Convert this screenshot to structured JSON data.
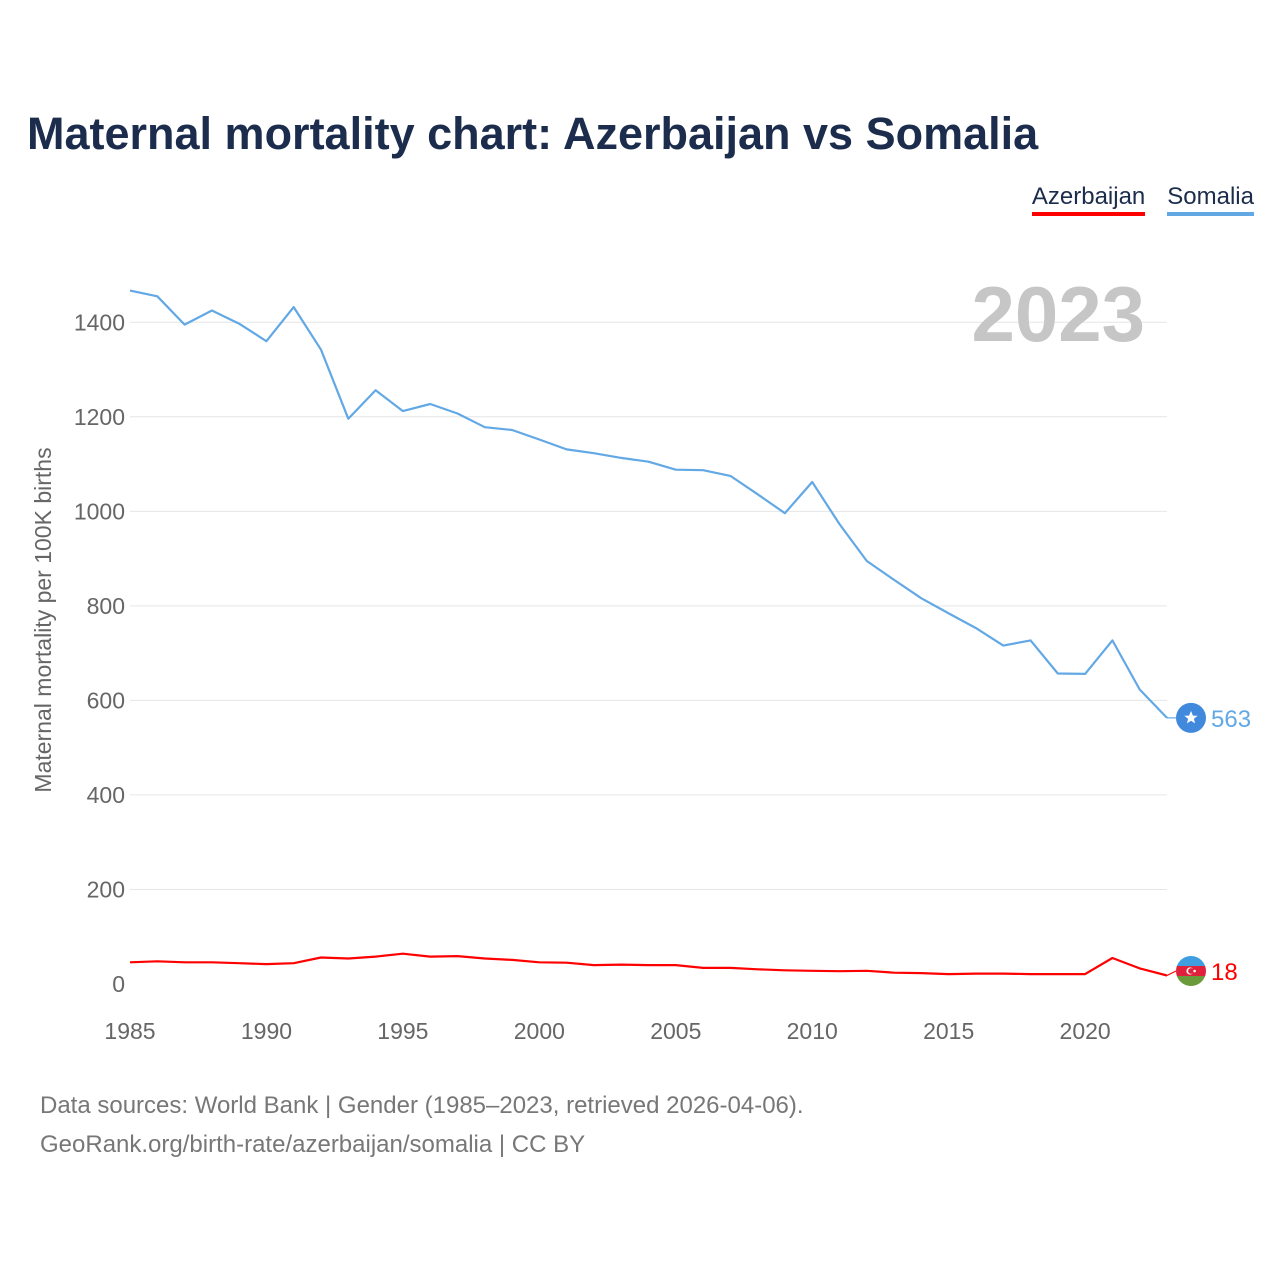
{
  "chart_data": {
    "type": "line",
    "title": "Maternal mortality chart: Azerbaijan vs Somalia",
    "ylabel": "Maternal mortality per 100K births",
    "xlabel": "",
    "current_year": "2023",
    "xlim": [
      1985,
      2023
    ],
    "ylim": [
      0,
      1500
    ],
    "x_ticks": [
      1985,
      1990,
      1995,
      2000,
      2005,
      2010,
      2015,
      2020
    ],
    "y_ticks": [
      0,
      200,
      400,
      600,
      800,
      1000,
      1200,
      1400
    ],
    "grid": true,
    "legend_position": "top-right",
    "x": [
      1985,
      1986,
      1987,
      1988,
      1989,
      1990,
      1991,
      1992,
      1993,
      1994,
      1995,
      1996,
      1997,
      1998,
      1999,
      2000,
      2001,
      2002,
      2003,
      2004,
      2005,
      2006,
      2007,
      2008,
      2009,
      2010,
      2011,
      2012,
      2013,
      2014,
      2015,
      2016,
      2017,
      2018,
      2019,
      2020,
      2021,
      2022,
      2023
    ],
    "series": [
      {
        "name": "Azerbaijan",
        "color": "#ff0000",
        "end_label": "18",
        "values": [
          46,
          48,
          46,
          46,
          44,
          42,
          44,
          56,
          54,
          58,
          64,
          58,
          59,
          54,
          51,
          46,
          45,
          40,
          41,
          40,
          40,
          34,
          34,
          31,
          29,
          28,
          27,
          28,
          24,
          23,
          21,
          22,
          22,
          21,
          21,
          21,
          55,
          33,
          18
        ]
      },
      {
        "name": "Somalia",
        "color": "#62a8e5",
        "end_label": "563",
        "values": [
          1467,
          1455,
          1395,
          1425,
          1397,
          1360,
          1432,
          1342,
          1196,
          1256,
          1212,
          1227,
          1207,
          1178,
          1172,
          1152,
          1131,
          1123,
          1113,
          1105,
          1088,
          1087,
          1075,
          1036,
          996,
          1062,
          973,
          895,
          855,
          816,
          784,
          753,
          716,
          727,
          657,
          656,
          727,
          623,
          563
        ]
      }
    ]
  },
  "footer": {
    "line1": "Data sources: World Bank | Gender (1985–2023, retrieved 2026-04-06).",
    "line2": "GeoRank.org/birth-rate/azerbaijan/somalia | CC BY"
  }
}
